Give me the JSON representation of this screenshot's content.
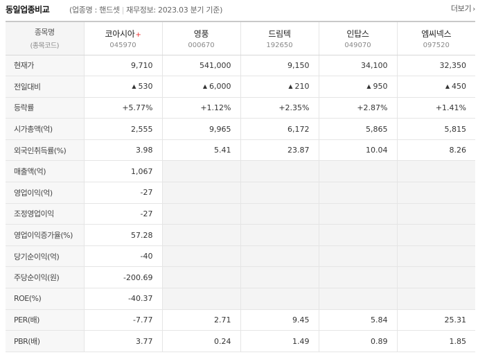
{
  "header": {
    "title": "동일업종비교",
    "industry_label": "(업종명 : 핸드셋",
    "financial_label": "재무정보: 2023.03 분기 기준)",
    "more_label": "더보기"
  },
  "table": {
    "corner": {
      "line1": "종목명",
      "line2": "(종목코드)"
    },
    "companies": [
      {
        "name": "코아시아",
        "code": "045970",
        "mark": "+"
      },
      {
        "name": "영풍",
        "code": "000670"
      },
      {
        "name": "드림텍",
        "code": "192650"
      },
      {
        "name": "인탑스",
        "code": "049070"
      },
      {
        "name": "엠씨넥스",
        "code": "097520"
      }
    ],
    "rows": [
      {
        "label": "현재가",
        "values": [
          "9,710",
          "541,000",
          "9,150",
          "34,100",
          "32,350"
        ]
      },
      {
        "label": "전일대비",
        "values": [
          "530",
          "6,000",
          "210",
          "950",
          "450"
        ],
        "style": "up-arrow"
      },
      {
        "label": "등락률",
        "values": [
          "+5.77%",
          "+1.12%",
          "+2.35%",
          "+2.87%",
          "+1.41%"
        ],
        "style": "up"
      },
      {
        "label": "시가총액(억)",
        "values": [
          "2,555",
          "9,965",
          "6,172",
          "5,865",
          "5,815"
        ]
      },
      {
        "label": "외국인취득률(%)",
        "values": [
          "3.98",
          "5.41",
          "23.87",
          "10.04",
          "8.26"
        ]
      },
      {
        "label": "매출액(억)",
        "values": [
          "1,067",
          "",
          "",
          "",
          ""
        ]
      },
      {
        "label": "영업이익(억)",
        "values": [
          "-27",
          "",
          "",
          "",
          ""
        ]
      },
      {
        "label": "조정영업이익",
        "values": [
          "-27",
          "",
          "",
          "",
          ""
        ]
      },
      {
        "label": "영업이익증가율(%)",
        "values": [
          "57.28",
          "",
          "",
          "",
          ""
        ]
      },
      {
        "label": "당기순이익(억)",
        "values": [
          "-40",
          "",
          "",
          "",
          ""
        ]
      },
      {
        "label": "주당순이익(원)",
        "values": [
          "-200.69",
          "",
          "",
          "",
          ""
        ]
      },
      {
        "label": "ROE(%)",
        "values": [
          "-40.37",
          "",
          "",
          "",
          ""
        ]
      },
      {
        "label": "PER(배)",
        "values": [
          "-7.77",
          "2.71",
          "9.45",
          "5.84",
          "25.31"
        ]
      },
      {
        "label": "PBR(배)",
        "values": [
          "3.77",
          "0.24",
          "1.49",
          "0.89",
          "1.85"
        ]
      }
    ]
  },
  "colors": {
    "up": "#e0222c",
    "label_bg": "#f7f7f7",
    "empty_bg": "#f4f4f4"
  },
  "icons": {
    "up_arrow": "up-triangle-icon",
    "more": "chevron-right-icon"
  }
}
